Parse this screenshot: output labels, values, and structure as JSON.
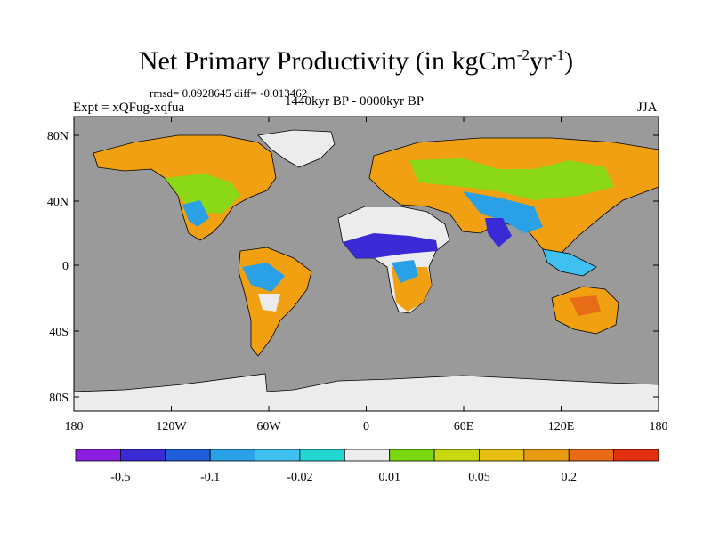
{
  "title": {
    "main": "Net Primary Productivity (in kgCm",
    "exp1": "-2",
    "mid": "yr",
    "exp2": "-1",
    "end": ")"
  },
  "stats": "rmsd= 0.0928645 diff= -0.013462",
  "experiment": "Expt = xQFug-xqfua",
  "period": "1440kyr BP - 0000kyr BP",
  "season": "JJA",
  "axes": {
    "lat_ticks": [
      "80N",
      "40N",
      "0",
      "40S",
      "80S"
    ],
    "lon_ticks": [
      "180",
      "120W",
      "60W",
      "0",
      "60E",
      "120E",
      "180"
    ]
  },
  "colorbar": {
    "colors": [
      "#8a1ee0",
      "#3a2ad6",
      "#1f5ed8",
      "#2aa0e6",
      "#40c0f0",
      "#24d6d0",
      "#ececec",
      "#7ad810",
      "#c8d810",
      "#e4be10",
      "#e89a10",
      "#e86c18",
      "#e03010"
    ],
    "labels": [
      "-0.5",
      "-0.1",
      "-0.02",
      "0.01",
      "0.05",
      "0.2"
    ]
  },
  "colors": {
    "ocean": "#9a9a9a",
    "ice": "#ececec"
  }
}
